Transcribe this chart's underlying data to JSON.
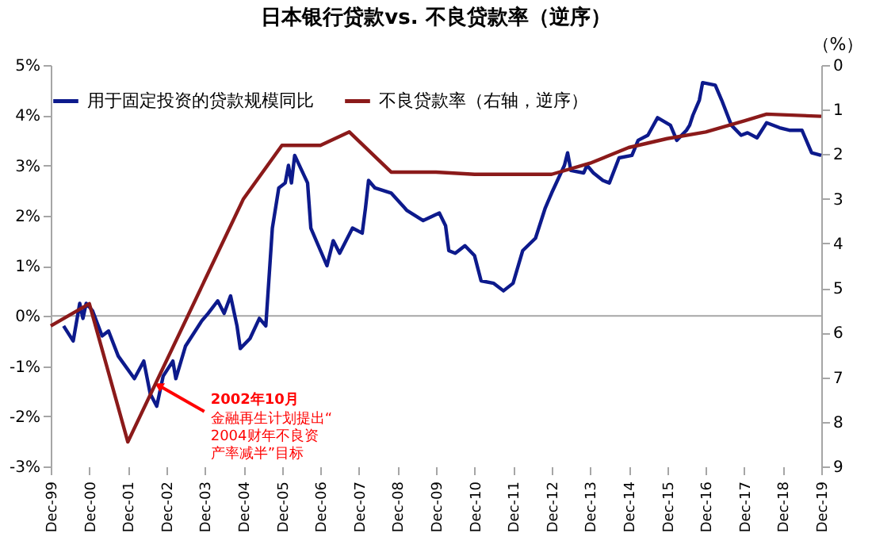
{
  "chart_data": {
    "type": "line",
    "title": "日本银行贷款vs. 不良贷款率（逆序）",
    "y2label": "（%）",
    "xlim": [
      "1999-12",
      "2019-12"
    ],
    "xticks": [
      {
        "value": "1999-12",
        "label": "Dec-99"
      },
      {
        "value": "2000-12",
        "label": "Dec-00"
      },
      {
        "value": "2001-12",
        "label": "Dec-01"
      },
      {
        "value": "2002-12",
        "label": "Dec-02"
      },
      {
        "value": "2003-12",
        "label": "Dec-03"
      },
      {
        "value": "2004-12",
        "label": "Dec-04"
      },
      {
        "value": "2005-12",
        "label": "Dec-05"
      },
      {
        "value": "2006-12",
        "label": "Dec-06"
      },
      {
        "value": "2007-12",
        "label": "Dec-07"
      },
      {
        "value": "2008-12",
        "label": "Dec-08"
      },
      {
        "value": "2009-12",
        "label": "Dec-09"
      },
      {
        "value": "2010-12",
        "label": "Dec-10"
      },
      {
        "value": "2011-12",
        "label": "Dec-11"
      },
      {
        "value": "2012-12",
        "label": "Dec-12"
      },
      {
        "value": "2013-12",
        "label": "Dec-13"
      },
      {
        "value": "2014-12",
        "label": "Dec-14"
      },
      {
        "value": "2015-12",
        "label": "Dec-15"
      },
      {
        "value": "2016-12",
        "label": "Dec-16"
      },
      {
        "value": "2017-12",
        "label": "Dec-17"
      },
      {
        "value": "2018-12",
        "label": "Dec-18"
      },
      {
        "value": "2019-12",
        "label": "Dec-19"
      }
    ],
    "ylim": [
      -3,
      5
    ],
    "yticks": [
      {
        "value": -3,
        "label": "-3%"
      },
      {
        "value": -2,
        "label": "-2%"
      },
      {
        "value": -1,
        "label": "-1%"
      },
      {
        "value": 0,
        "label": "0%"
      },
      {
        "value": 1,
        "label": "1%"
      },
      {
        "value": 2,
        "label": "2%"
      },
      {
        "value": 3,
        "label": "3%"
      },
      {
        "value": 4,
        "label": "4%"
      },
      {
        "value": 5,
        "label": "5%"
      }
    ],
    "y2lim": [
      9,
      0
    ],
    "y2ticks": [
      0,
      1,
      2,
      3,
      4,
      5,
      6,
      7,
      8,
      9
    ],
    "grid": false,
    "legend": "top",
    "marker": "none",
    "line_style": "solid",
    "ref_lines": [
      {
        "axis": "y",
        "value": 0,
        "color": "#a6a6a6"
      }
    ],
    "annotations": [
      {
        "text": "2002年10月",
        "x": "2002-10",
        "y": -1.4
      },
      "金融再生计划提出“2004财年不良资产率减半”目标"
    ],
    "series": [
      {
        "name": "用于固定投资的贷款规模同比",
        "color": "#0d1a8c",
        "x": [
          "2000-04",
          "2000-07",
          "2000-09",
          "2000-10",
          "2000-11",
          "2001-01",
          "2001-04",
          "2001-06",
          "2001-09",
          "2002-02",
          "2002-05",
          "2002-07",
          "2002-09",
          "2002-11",
          "2003-02",
          "2003-03",
          "2003-06",
          "2003-11",
          "2004-01",
          "2004-04",
          "2004-06",
          "2004-08",
          "2004-10",
          "2004-11",
          "2005-02",
          "2005-05",
          "2005-07",
          "2005-09",
          "2005-11",
          "2006-01",
          "2006-02",
          "2006-03",
          "2006-04",
          "2006-08",
          "2006-09",
          "2007-02",
          "2007-04",
          "2007-06",
          "2007-10",
          "2008-01",
          "2008-02",
          "2008-03",
          "2008-05",
          "2008-10",
          "2009-03",
          "2009-08",
          "2010-01",
          "2010-03",
          "2010-04",
          "2010-06",
          "2010-09",
          "2010-12",
          "2011-02",
          "2011-06",
          "2011-09",
          "2011-12",
          "2012-03",
          "2012-07",
          "2012-10",
          "2012-12",
          "2013-04",
          "2013-05",
          "2013-06",
          "2013-10",
          "2013-11",
          "2014-01",
          "2014-04",
          "2014-06",
          "2014-09",
          "2015-01",
          "2015-03",
          "2015-06",
          "2015-09",
          "2016-01",
          "2016-03",
          "2016-06",
          "2016-07",
          "2016-08",
          "2016-10",
          "2016-11",
          "2017-03",
          "2017-05",
          "2017-08",
          "2017-11",
          "2018-01",
          "2018-04",
          "2018-07",
          "2018-11",
          "2019-02",
          "2019-06",
          "2019-09",
          "2019-12"
        ],
        "values": [
          -0.2,
          -0.5,
          0.25,
          -0.05,
          0.25,
          0.1,
          -0.4,
          -0.3,
          -0.8,
          -1.25,
          -0.9,
          -1.55,
          -1.8,
          -1.2,
          -0.9,
          -1.25,
          -0.6,
          -0.1,
          0.05,
          0.3,
          0.05,
          0.4,
          -0.2,
          -0.65,
          -0.45,
          -0.05,
          -0.2,
          1.75,
          2.55,
          2.65,
          3.0,
          2.65,
          3.2,
          2.65,
          1.75,
          1.0,
          1.5,
          1.25,
          1.75,
          1.65,
          2.15,
          2.7,
          2.55,
          2.45,
          2.1,
          1.9,
          2.05,
          1.8,
          1.3,
          1.25,
          1.4,
          1.2,
          0.7,
          0.65,
          0.5,
          0.65,
          1.3,
          1.55,
          2.15,
          2.45,
          3.0,
          3.25,
          2.9,
          2.85,
          3.0,
          2.85,
          2.7,
          2.65,
          3.15,
          3.2,
          3.5,
          3.6,
          3.95,
          3.8,
          3.5,
          3.7,
          3.8,
          4.0,
          4.3,
          4.65,
          4.6,
          4.3,
          3.8,
          3.6,
          3.65,
          3.55,
          3.85,
          3.75,
          3.7,
          3.7,
          3.25,
          3.2
        ]
      },
      {
        "name": "不良贷款率（右轴，逆序）",
        "color": "#8b1a1a",
        "axis": "y2",
        "x": [
          "1999-12",
          "2000-12",
          "2001-12",
          "2004-12",
          "2005-12",
          "2006-12",
          "2007-09",
          "2008-10",
          "2009-12",
          "2010-12",
          "2012-12",
          "2013-12",
          "2014-12",
          "2015-12",
          "2016-12",
          "2017-12",
          "2018-07",
          "2019-12"
        ],
        "values": [
          5.85,
          5.35,
          8.45,
          3.0,
          1.8,
          1.8,
          1.5,
          2.4,
          2.4,
          2.45,
          2.45,
          2.2,
          1.85,
          1.65,
          1.5,
          1.25,
          1.1,
          1.15
        ]
      }
    ]
  }
}
